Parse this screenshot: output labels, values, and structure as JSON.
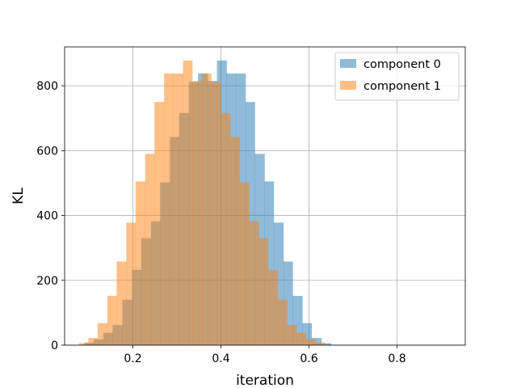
{
  "chart_data": {
    "type": "histogram",
    "title": "",
    "xlabel": "iteration",
    "ylabel": "KL",
    "xlim": [
      0.045,
      0.955
    ],
    "ylim": [
      0,
      920
    ],
    "xticks": [
      0.2,
      0.4,
      0.6,
      0.8
    ],
    "xtick_labels": [
      "0.2",
      "0.4",
      "0.6",
      "0.8"
    ],
    "yticks": [
      0,
      200,
      400,
      600,
      800
    ],
    "ytick_labels": [
      "0",
      "200",
      "400",
      "600",
      "800"
    ],
    "grid": true,
    "legend_position": "top-right",
    "series": [
      {
        "name": "component 0",
        "color": "#1f77b4",
        "alpha": 0.5,
        "bins": [
          [
            0.09,
            0.111,
            8
          ],
          [
            0.111,
            0.133,
            18
          ],
          [
            0.133,
            0.154,
            38
          ],
          [
            0.154,
            0.176,
            62
          ],
          [
            0.176,
            0.198,
            140
          ],
          [
            0.198,
            0.219,
            232
          ],
          [
            0.219,
            0.241,
            330
          ],
          [
            0.241,
            0.262,
            382
          ],
          [
            0.262,
            0.284,
            502
          ],
          [
            0.284,
            0.305,
            642
          ],
          [
            0.305,
            0.327,
            716
          ],
          [
            0.327,
            0.348,
            812
          ],
          [
            0.348,
            0.37,
            838
          ],
          [
            0.37,
            0.391,
            815
          ],
          [
            0.391,
            0.413,
            878
          ],
          [
            0.413,
            0.434,
            838
          ],
          [
            0.434,
            0.456,
            838
          ],
          [
            0.456,
            0.477,
            750
          ],
          [
            0.477,
            0.499,
            590
          ],
          [
            0.499,
            0.52,
            505
          ],
          [
            0.52,
            0.542,
            378
          ],
          [
            0.542,
            0.563,
            258
          ],
          [
            0.563,
            0.585,
            152
          ],
          [
            0.585,
            0.606,
            68
          ],
          [
            0.606,
            0.628,
            22
          ],
          [
            0.628,
            0.65,
            6
          ]
        ]
      },
      {
        "name": "component 1",
        "color": "#ff7f0e",
        "alpha": 0.5,
        "bins": [
          [
            0.077,
            0.099,
            6
          ],
          [
            0.099,
            0.12,
            22
          ],
          [
            0.12,
            0.142,
            68
          ],
          [
            0.142,
            0.163,
            152
          ],
          [
            0.163,
            0.185,
            258
          ],
          [
            0.185,
            0.206,
            378
          ],
          [
            0.206,
            0.228,
            505
          ],
          [
            0.228,
            0.249,
            590
          ],
          [
            0.249,
            0.271,
            750
          ],
          [
            0.271,
            0.292,
            838
          ],
          [
            0.292,
            0.314,
            838
          ],
          [
            0.314,
            0.335,
            878
          ],
          [
            0.335,
            0.357,
            815
          ],
          [
            0.357,
            0.378,
            838
          ],
          [
            0.378,
            0.4,
            812
          ],
          [
            0.4,
            0.421,
            716
          ],
          [
            0.421,
            0.443,
            642
          ],
          [
            0.443,
            0.464,
            502
          ],
          [
            0.464,
            0.486,
            382
          ],
          [
            0.486,
            0.507,
            330
          ],
          [
            0.507,
            0.529,
            232
          ],
          [
            0.529,
            0.55,
            140
          ],
          [
            0.55,
            0.572,
            62
          ],
          [
            0.572,
            0.593,
            38
          ],
          [
            0.593,
            0.615,
            18
          ],
          [
            0.615,
            0.636,
            8
          ]
        ]
      }
    ]
  }
}
